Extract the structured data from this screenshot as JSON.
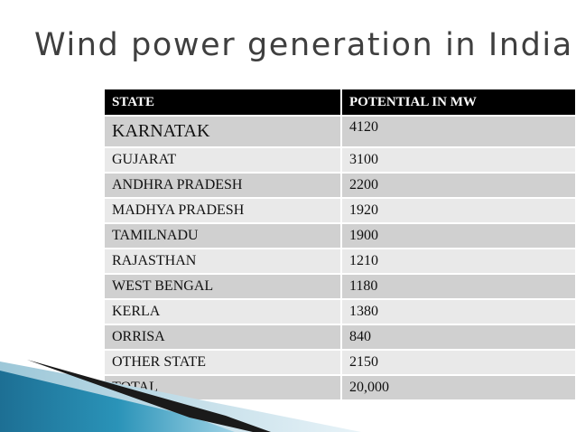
{
  "title": "Wind power generation in India",
  "table": {
    "headers": [
      "STATE",
      "POTENTIAL IN MW"
    ],
    "rows": [
      [
        "KARNATAK",
        "4120"
      ],
      [
        "GUJARAT",
        "3100"
      ],
      [
        "ANDHRA PRADESH",
        "2200"
      ],
      [
        "MADHYA PRADESH",
        "1920"
      ],
      [
        "TAMILNADU",
        "1900"
      ],
      [
        "RAJASTHAN",
        "1210"
      ],
      [
        "WEST BENGAL",
        "1180"
      ],
      [
        "KERLA",
        "1380"
      ],
      [
        "ORRISA",
        "840"
      ],
      [
        "OTHER STATE",
        "2150"
      ],
      [
        "TOTAL",
        "20,000"
      ]
    ]
  },
  "colors": {
    "header_bg": "#000000",
    "row_dark": "#d0d0d0",
    "row_light": "#e9e9e9",
    "accent_blue": "#2a93b8",
    "title_text": "#3f3f3f"
  }
}
